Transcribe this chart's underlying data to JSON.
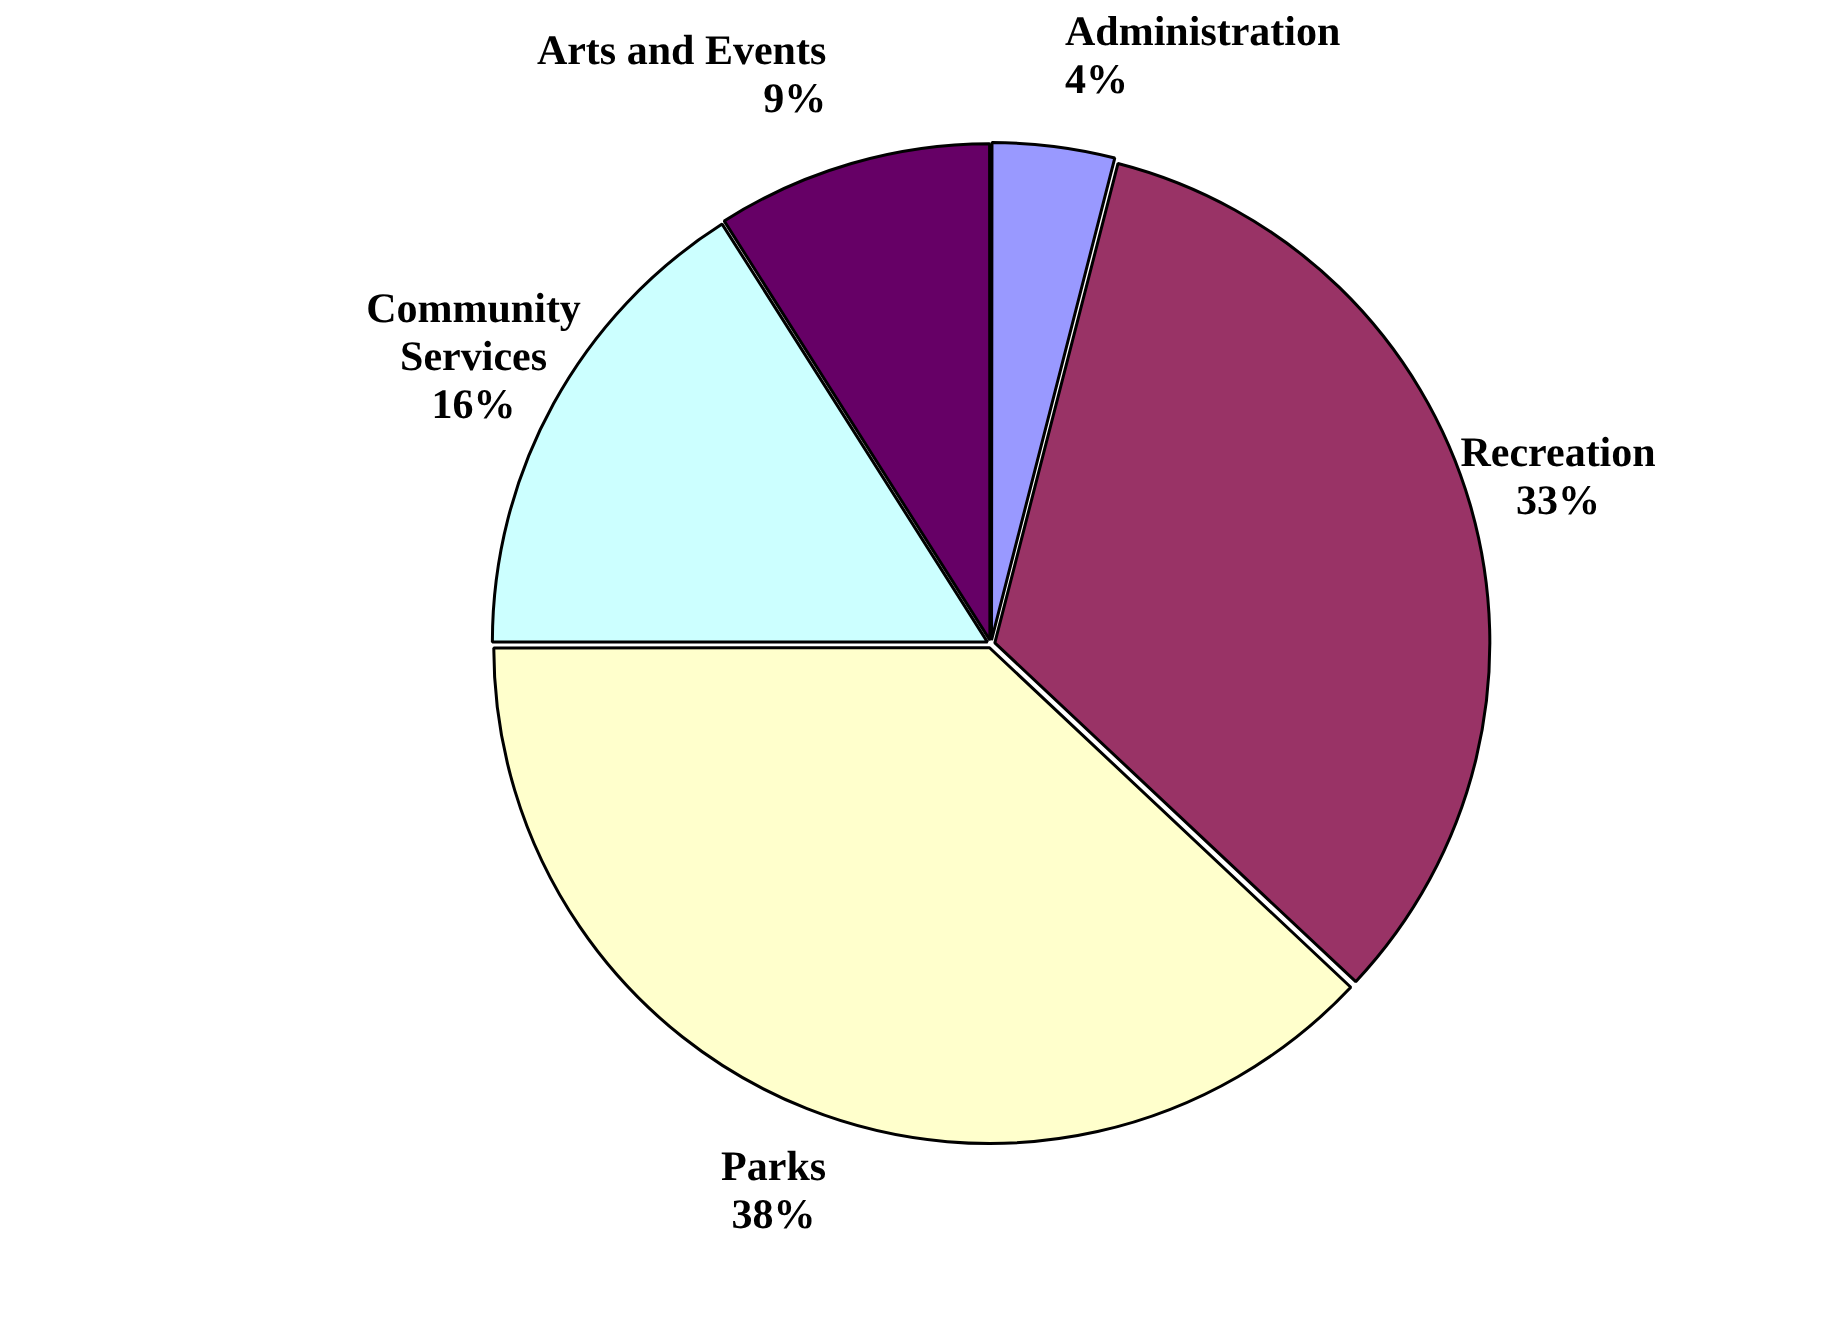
{
  "chart_data": {
    "type": "pie",
    "categories": [
      "Administration",
      "Recreation",
      "Parks",
      "Community Services",
      "Arts and Events"
    ],
    "values": [
      4,
      33,
      38,
      16,
      9
    ],
    "value_labels": [
      "4%",
      "33%",
      "38%",
      "16%",
      "9%"
    ],
    "colors": [
      "#9999ff",
      "#993366",
      "#ffffcc",
      "#ccffff",
      "#660066"
    ],
    "legend": false
  }
}
